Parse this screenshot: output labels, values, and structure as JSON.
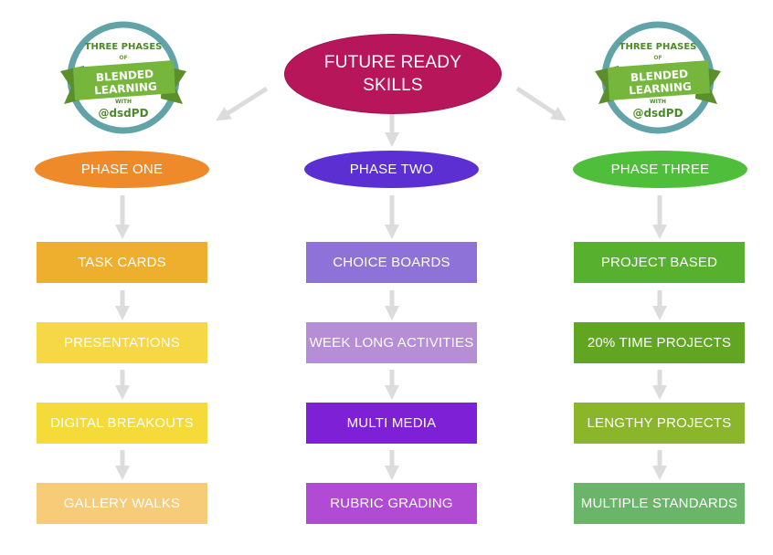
{
  "title": {
    "line1": "FUTURE READY",
    "line2": "SKILLS"
  },
  "badge": {
    "top": "THREE PHASES",
    "of": "OF",
    "ribbon": "BLENDED LEARNING",
    "with": "WITH",
    "handle": "@dsdPD"
  },
  "phases": [
    {
      "label": "PHASE ONE",
      "color": "#ef8a2a",
      "items": [
        {
          "label": "TASK CARDS",
          "color": "#efaf2e"
        },
        {
          "label": "PRESENTATIONS",
          "color": "#f6d745"
        },
        {
          "label": "DIGITAL BREAKOUTS",
          "color": "#f4db3a"
        },
        {
          "label": "GALLERY WALKS",
          "color": "#f6cc79"
        }
      ]
    },
    {
      "label": "PHASE TWO",
      "color": "#5b2fd1",
      "items": [
        {
          "label": "CHOICE BOARDS",
          "color": "#8e72d7"
        },
        {
          "label": "WEEK LONG ACTIVITIES",
          "color": "#b58ed6"
        },
        {
          "label": "MULTI MEDIA",
          "color": "#7e21d6"
        },
        {
          "label": "RUBRIC GRADING",
          "color": "#b24bd3"
        }
      ]
    },
    {
      "label": "PHASE THREE",
      "color": "#4fbe3a",
      "items": [
        {
          "label": "PROJECT BASED",
          "color": "#58b12e"
        },
        {
          "label": "20% TIME PROJECTS",
          "color": "#62a522"
        },
        {
          "label": "LENGTHY PROJECTS",
          "color": "#8bb52a"
        },
        {
          "label": "MULTIPLE STANDARDS",
          "color": "#6bb56b"
        }
      ]
    }
  ]
}
